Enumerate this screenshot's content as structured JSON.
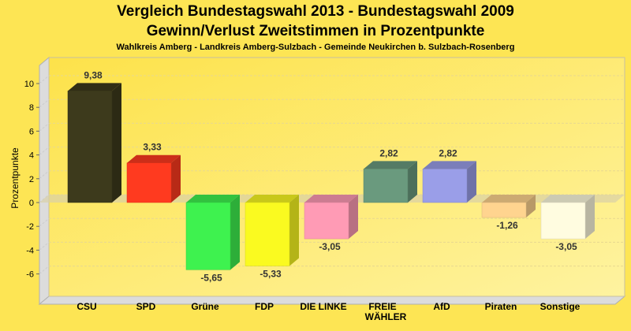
{
  "chart_data": {
    "type": "bar",
    "title": "Vergleich Bundestagswahl 2013 - Bundestagswahl 2009",
    "subtitle": "Gewinn/Verlust Zweitstimmen in Prozentpunkte",
    "subtitle2": "Wahlkreis Amberg - Landkreis Amberg-Sulzbach - Gemeinde Neukirchen b. Sulzbach-Rosenberg",
    "xlabel": "",
    "ylabel": "Prozentpunkte",
    "ylim": [
      -7.9,
      11.5
    ],
    "yticks": [
      -6,
      -4,
      -2,
      0,
      2,
      4,
      6,
      8,
      10
    ],
    "grid": true,
    "categories": [
      "CSU",
      "SPD",
      "Grüne",
      "FDP",
      "DIE LINKE",
      "FREIE WÄHLER",
      "AfD",
      "Piraten",
      "Sonstige"
    ],
    "values": [
      9.38,
      3.33,
      -5.65,
      -5.33,
      -3.05,
      2.82,
      2.82,
      -1.26,
      -3.05
    ],
    "value_labels": [
      "9,38",
      "3,33",
      "-5,65",
      "-5,33",
      "-3,05",
      "2,82",
      "2,82",
      "-1,26",
      "-3,05"
    ],
    "colors": [
      "#3d3a1c",
      "#ff3a1f",
      "#3ef24f",
      "#fafa20",
      "#ff9bb5",
      "#6a9a7e",
      "#9a9ee8",
      "#ffd48f",
      "#fffce0"
    ]
  }
}
